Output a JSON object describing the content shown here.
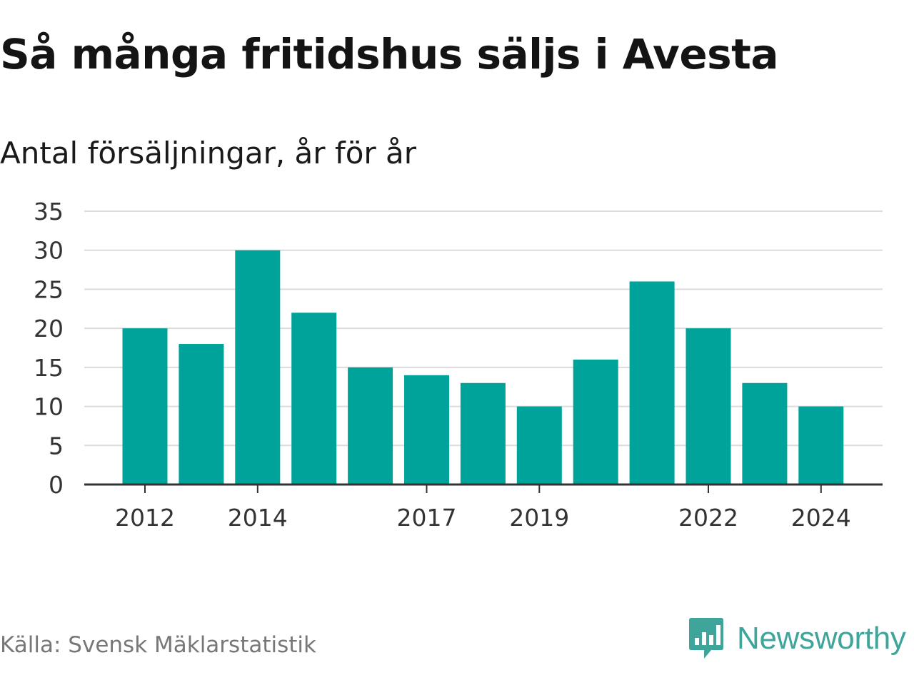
{
  "header": {
    "title": "Så många fritidshus säljs i Avesta",
    "subtitle": "Antal försäljningar, år för år"
  },
  "footer": {
    "source": "Källa: Svensk Mäklarstatistik",
    "brand": "Newsworthy"
  },
  "colors": {
    "bar": "#00a39a",
    "grid": "#dcdcdc",
    "axis": "#333333",
    "brand": "#3fa59a"
  },
  "chart_data": {
    "type": "bar",
    "categories": [
      "2012",
      "2013",
      "2014",
      "2015",
      "2016",
      "2017",
      "2018",
      "2019",
      "2020",
      "2021",
      "2022",
      "2023",
      "2024"
    ],
    "values": [
      20,
      18,
      30,
      22,
      15,
      14,
      13,
      10,
      16,
      26,
      20,
      13,
      10
    ],
    "xticks": [
      "2012",
      "2014",
      "2017",
      "2019",
      "2022",
      "2024"
    ],
    "yticks": [
      0,
      5,
      10,
      15,
      20,
      25,
      30,
      35
    ],
    "ylim": [
      0,
      35
    ],
    "grid": true,
    "title": "Så många fritidshus säljs i Avesta",
    "subtitle": "Antal försäljningar, år för år",
    "xlabel": "",
    "ylabel": ""
  }
}
